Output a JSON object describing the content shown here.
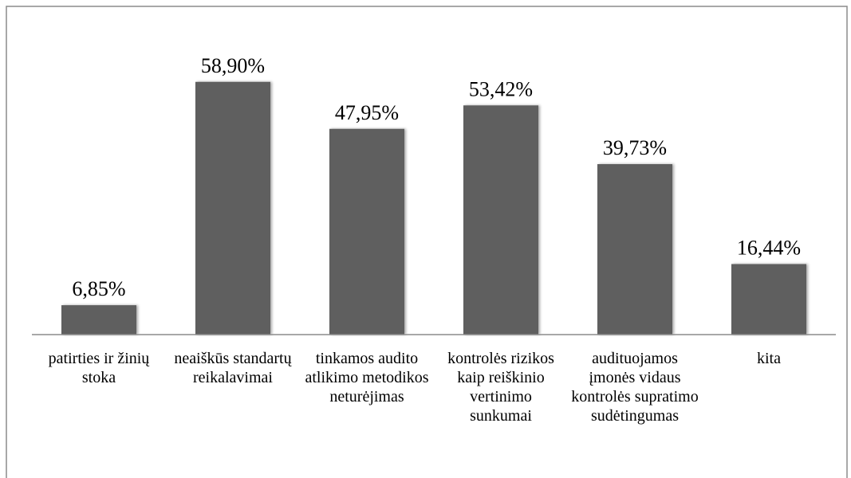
{
  "chart_data": {
    "type": "bar",
    "categories": [
      "patirties ir žinių stoka",
      "neaiškūs standartų reikalavimai",
      "tinkamos audito atlikimo metodikos neturėjimas",
      "kontrolės rizikos kaip reiškinio vertinimo sunkumai",
      "audituojamos įmonės vidaus kontrolės supratimo sudėtingumas",
      "kita"
    ],
    "values": [
      6.85,
      58.9,
      47.95,
      53.42,
      39.73,
      16.44
    ],
    "value_labels": [
      "6,85%",
      "58,90%",
      "47,95%",
      "53,42%",
      "39,73%",
      "16,44%"
    ],
    "color": "#5f5f5f",
    "ylim": [
      0,
      70
    ]
  }
}
